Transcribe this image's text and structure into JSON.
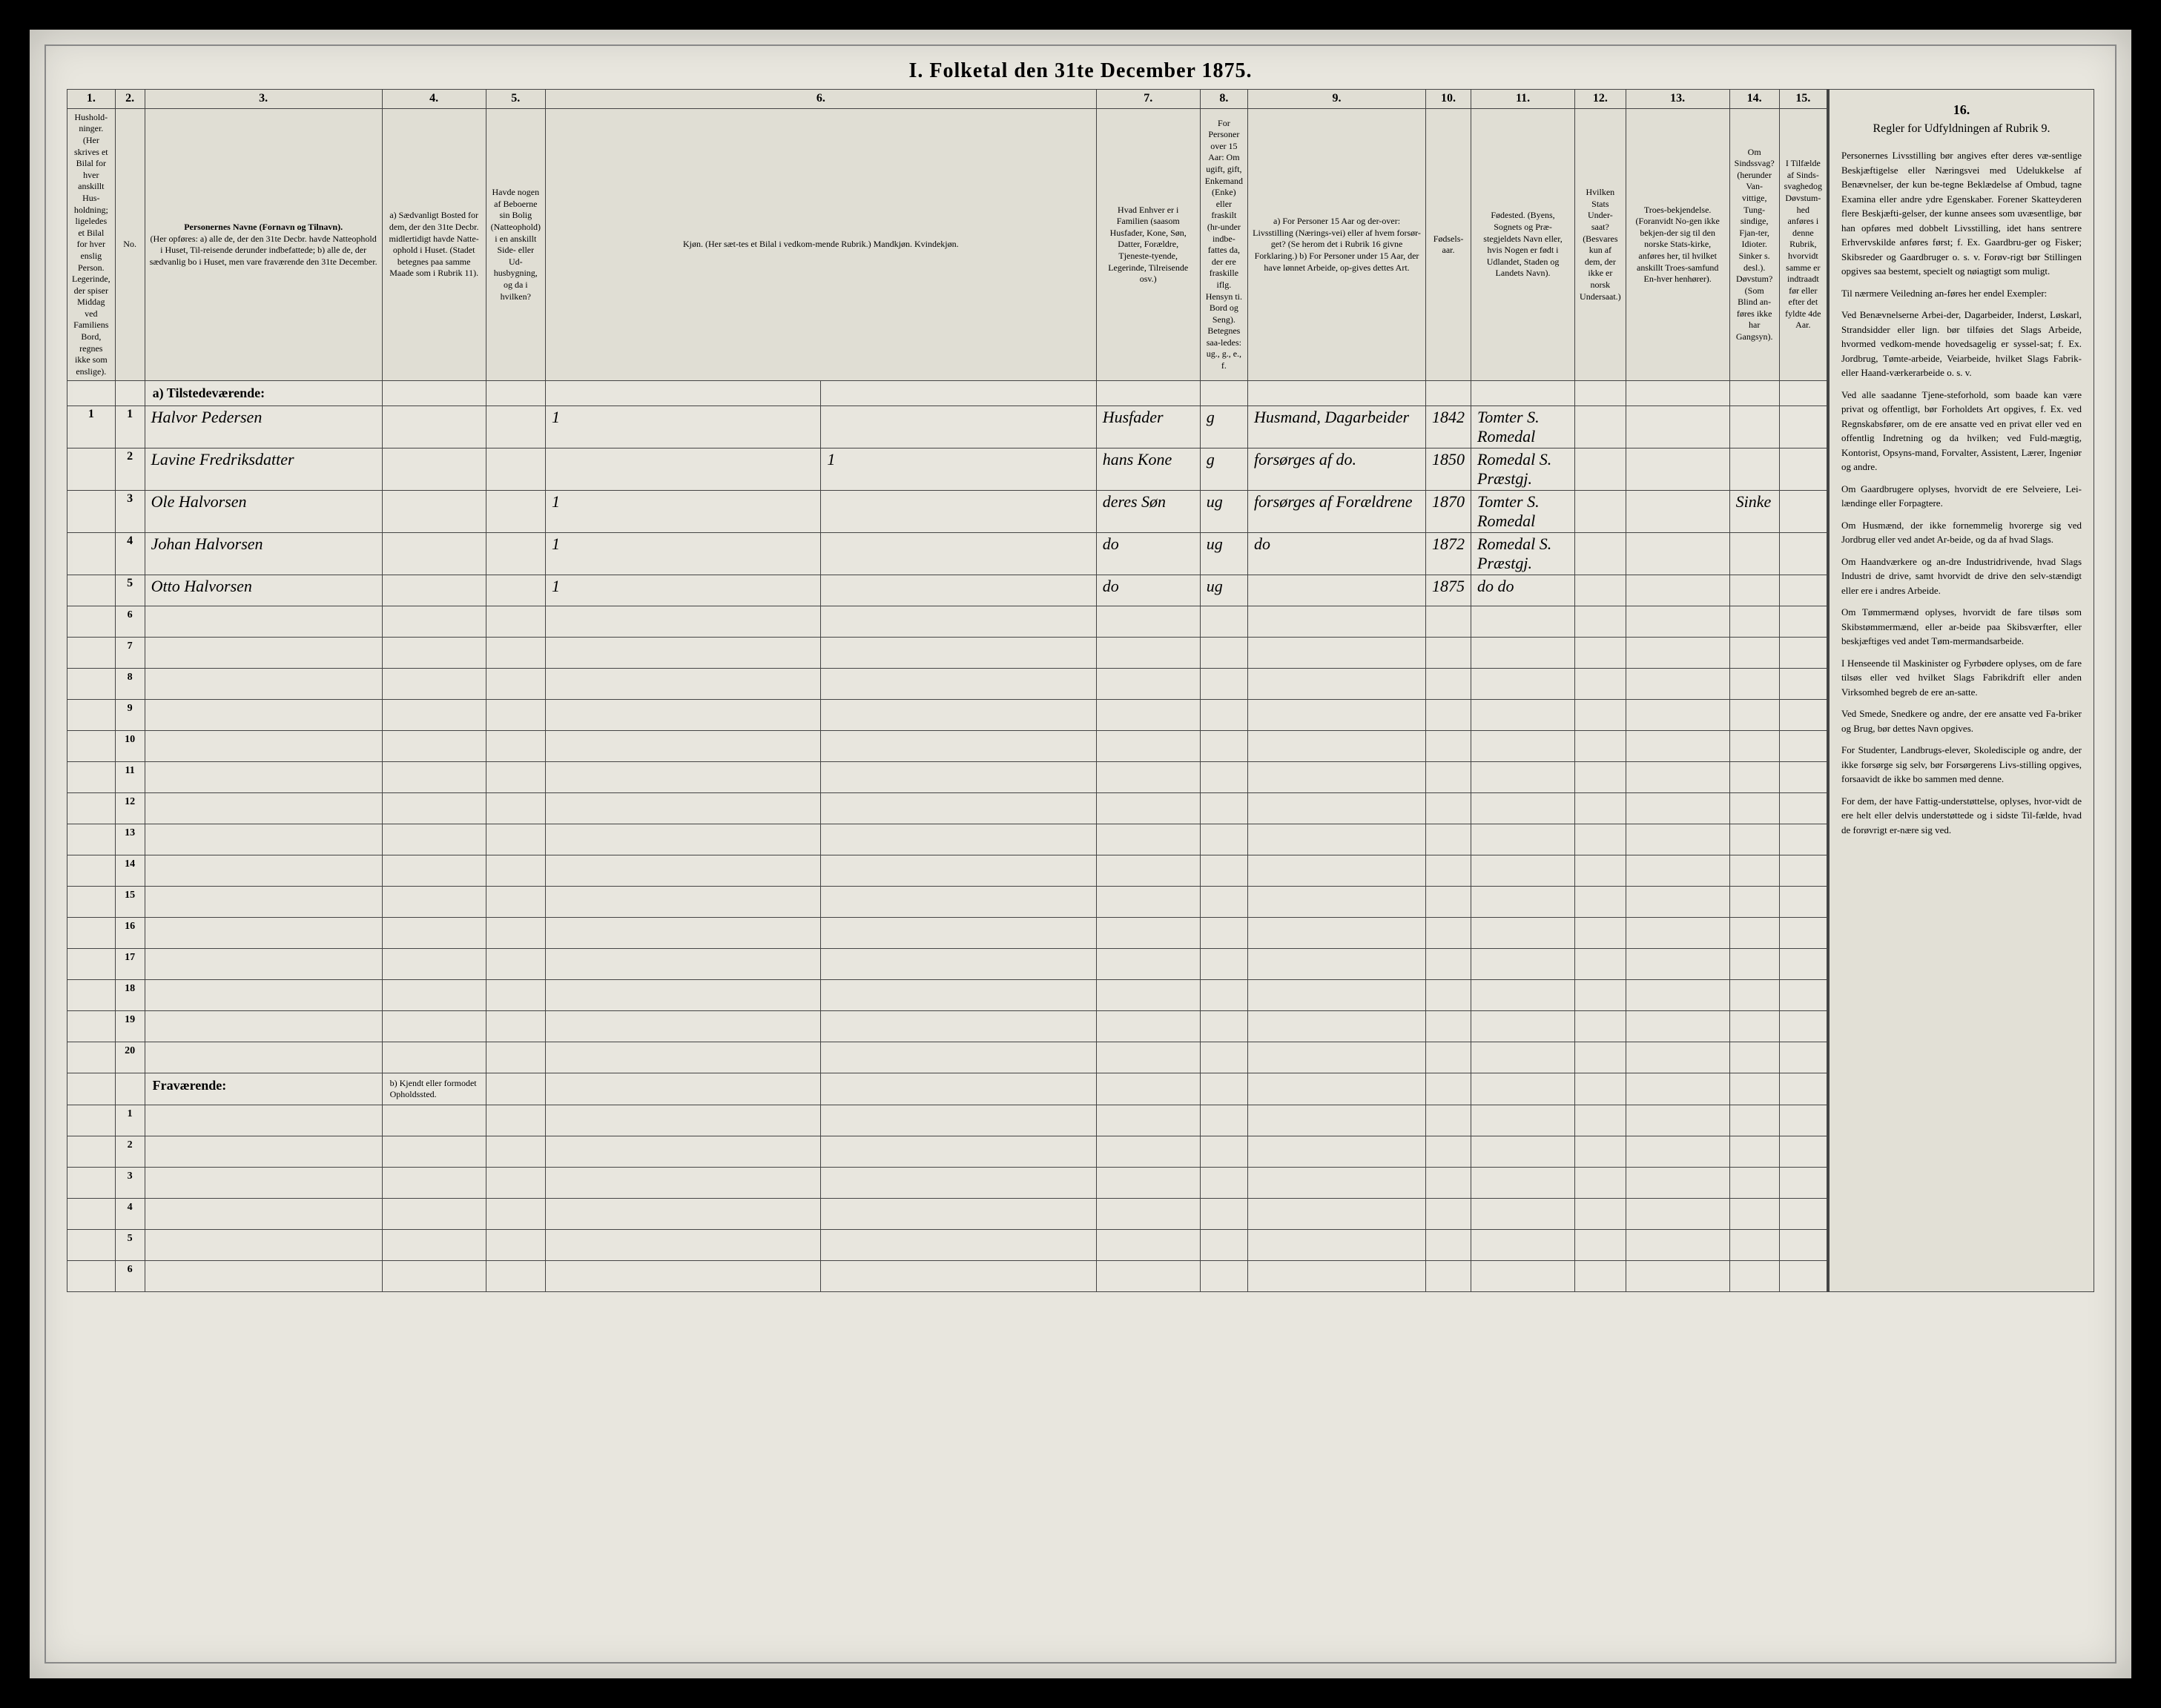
{
  "title": "I. Folketal den 31te December 1875.",
  "colnums": [
    "1.",
    "2.",
    "3.",
    "4.",
    "5.",
    "6.",
    "7.",
    "8.",
    "9.",
    "10.",
    "11.",
    "12.",
    "13.",
    "14.",
    "15.",
    "16."
  ],
  "headers": {
    "c1": "Hushold-ninger. (Her skrives et Bilal for hver anskillt Hus-holdning; ligeledes et Bilal for hver enslig Person. Legerinde, der spiser Middag ved Familiens Bord, regnes ikke som enslige).",
    "c2": "No.",
    "c3_title": "Personernes Navne (Fornavn og Tilnavn).",
    "c3_sub": "(Her opføres: a) alle de, der den 31te Decbr. havde Natteophold i Huset, Til-reisende derunder indbefattede; b) alle de, der sædvanlig bo i Huset, men vare fraværende den 31te December.",
    "c4": "a) Sædvanligt Bosted for dem, der den 31te Decbr. midlertidigt havde Natte-ophold i Huset. (Stadet betegnes paa samme Maade som i Rubrik 11).",
    "c5": "Havde nogen af Beboerne sin Bolig (Natteophold) i en anskillt Side- eller Ud-husbygning, og da i hvilken?",
    "c6": "Kjøn. (Her sæt-tes et Bilal i vedkom-mende Rubrik.) Mandkjøn. Kvindekjøn.",
    "c7": "Hvad Enhver er i Familien (saasom Husfader, Kone, Søn, Datter, Forældre, Tjeneste-tyende, Legerinde, Tilreisende osv.)",
    "c8": "For Personer over 15 Aar: Om ugift, gift, Enkemand (Enke) eller fraskilt (hr-under indbe-fattes da, der ere fraskille iflg. Hensyn ti. Bord og Seng). Betegnes saa-ledes: ug., g., e., f.",
    "c9": "a) For Personer 15 Aar og der-over: Livsstilling (Nærings-vei) eller af hvem forsør-get? (Se herom det i Rubrik 16 givne Forklaring.) b) For Personer under 15 Aar, der have lønnet Arbeide, op-gives dettes Art.",
    "c10": "Fødsels-aar.",
    "c11": "Fødested. (Byens, Sognets og Præ-stegjeldets Navn eller, hvis Nogen er født i Udlandet, Staden og Landets Navn).",
    "c12": "Hvilken Stats Under-saat? (Besvares kun af dem, der ikke er norsk Undersaat.)",
    "c13": "Troes-bekjendelse. (Foranvidt No-gen ikke bekjen-der sig til den norske Stats-kirke, anføres her, til hvilket anskillt Troes-samfund En-hver henhører).",
    "c14": "Om Sindssvag? (herunder Van-vittige, Tung-sindige, Fjan-ter, Idioter. Sinker s. desl.). Døvstum? (Som Blind an-føres ikke har Gangsyn).",
    "c15": "I Tilfælde af Sinds-svaghedog Døvstum-hed anføres i denne Rubrik, hvorvidt samme er indtraadt før eller efter det fyldte 4de Aar.",
    "c16": "Regler for Udfyldningen af Rubrik 9."
  },
  "section_a": "a) Tilstedeværende:",
  "section_b": "Fraværende:",
  "section_b_col4": "b) Kjendt eller formodet Opholdssted.",
  "rows": [
    {
      "hh": "1",
      "n": "1",
      "name": "Halvor Pedersen",
      "c6m": "1",
      "c6k": "",
      "rel": "Husfader",
      "ms": "g",
      "occ": "Husmand, Dagarbeider",
      "yr": "1842",
      "bp": "Tomter S. Romedal"
    },
    {
      "hh": "",
      "n": "2",
      "name": "Lavine Fredriksdatter",
      "c6m": "",
      "c6k": "1",
      "rel": "hans Kone",
      "ms": "g",
      "occ": "forsørges af do.",
      "yr": "1850",
      "bp": "Romedal S. Præstgj."
    },
    {
      "hh": "",
      "n": "3",
      "name": "Ole Halvorsen",
      "c6m": "1",
      "c6k": "",
      "rel": "deres Søn",
      "ms": "ug",
      "occ": "forsørges af Forældrene",
      "yr": "1870",
      "bp": "Tomter S. Romedal",
      "c14": "Sinke"
    },
    {
      "hh": "",
      "n": "4",
      "name": "Johan Halvorsen",
      "c6m": "1",
      "c6k": "",
      "rel": "do",
      "ms": "ug",
      "occ": "do",
      "yr": "1872",
      "bp": "Romedal S. Præstgj."
    },
    {
      "hh": "",
      "n": "5",
      "name": "Otto Halvorsen",
      "c6m": "1",
      "c6k": "",
      "rel": "do",
      "ms": "ug",
      "occ": "",
      "yr": "1875",
      "bp": "do   do"
    }
  ],
  "rules": {
    "title": "Regler for Udfyldningen af Rubrik 9.",
    "p1": "Personernes Livsstilling bør angives efter deres væ-sentlige Beskjæftigelse eller Næringsvei med Udelukkelse af Benævnelser, der kun be-tegne Beklædelse af Ombud, tagne Examina eller andre ydre Egenskaber. Forener Skatteyderen flere Beskjæfti-gelser, der kunne ansees som uvæsentlige, bør han opføres med dobbelt Livsstilling, idet hans sentrere Erhvervskilde anføres først; f. Ex. Gaardbru-ger og Fisker; Skibsreder og Gaardbruger o. s. v. Forøv-rigt bør Stillingen opgives saa bestemt, specielt og nøiagtigt som muligt.",
    "p2": "Til nærmere Veiledning an-føres her endel Exempler:",
    "p3": "Ved Benævnelserne Arbei-der, Dagarbeider, Inderst, Løskarl, Strandsidder eller lign. bør tilføies det Slags Arbeide, hvormed vedkom-mende hovedsagelig er syssel-sat; f. Ex. Jordbrug, Tømte-arbeide, Veiarbeide, hvilket Slags Fabrik- eller Haand-værkerarbeide o. s. v.",
    "p4": "Ved alle saadanne Tjene-steforhold, som baade kan være privat og offentligt, bør Forholdets Art opgives, f. Ex. ved Regnskabsfører, om de ere ansatte ved en privat eller ved en offentlig Indretning og da hvilken; ved Fuld-mægtig, Kontorist, Opsyns-mand, Forvalter, Assistent, Lærer, Ingeniør og andre.",
    "p5": "Om Gaardbrugere oplyses, hvorvidt de ere Selveiere, Lei-lændinge eller Forpagtere.",
    "p6": "Om Husmænd, der ikke fornemmelig hvorerge sig ved Jordbrug eller ved andet Ar-beide, og da af hvad Slags.",
    "p7": "Om Haandværkere og an-dre Industridrivende, hvad Slags Industri de drive, samt hvorvidt de drive den selv-stændigt eller ere i andres Arbeide.",
    "p8": "Om Tømmermænd oplyses, hvorvidt de fare tilsøs som Skibstømmermænd, eller ar-beide paa Skibsværfter, eller beskjæftiges ved andet Tøm-mermandsarbeide.",
    "p9": "I Henseende til Maskinister og Fyrbødere oplyses, om de fare tilsøs eller ved hvilket Slags Fabrikdrift eller anden Virksomhed begreb de ere an-satte.",
    "p10": "Ved Smede, Snedkere og andre, der ere ansatte ved Fa-briker og Brug, bør dettes Navn opgives.",
    "p11": "For Studenter, Landbrugs-elever, Skoledisciple og andre, der ikke forsørge sig selv, bør Forsørgerens Livs-stilling opgives, forsaavidt de ikke bo sammen med denne.",
    "p12": "For dem, der have Fattig-understøttelse, oplyses, hvor-vidt de ere helt eller delvis understøttede og i sidste Til-fælde, hvad de forøvrigt er-nære sig ved."
  },
  "colors": {
    "page_bg": "#e8e6de",
    "border": "#444",
    "header_bg": "#e0ded4",
    "body_bg": "#000"
  }
}
